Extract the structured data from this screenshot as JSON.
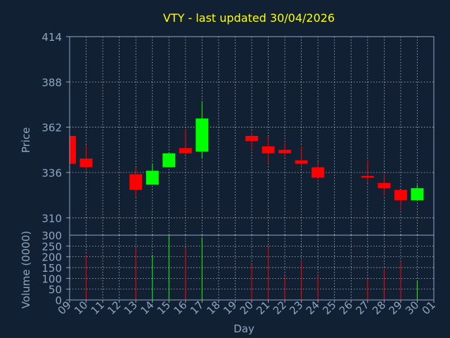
{
  "chart_data": [
    {
      "type": "candlestick",
      "title": "VTY - last updated 30/04/2026",
      "ylabel": "Price",
      "ylim": [
        300,
        414
      ],
      "yticks": [
        300,
        310,
        336,
        362,
        388,
        414
      ],
      "x_ticks": [
        "09",
        "10",
        "11",
        "12",
        "13",
        "14",
        "15",
        "16",
        "17",
        "18",
        "19",
        "20",
        "21",
        "22",
        "23",
        "24",
        "25",
        "26",
        "27",
        "28",
        "29",
        "30",
        "01"
      ],
      "grid": true,
      "up_color": "#00ff00",
      "down_color": "#ff0000",
      "candles": [
        {
          "x": "09",
          "open": 357,
          "high": 357,
          "low": 341,
          "close": 341
        },
        {
          "x": "10",
          "open": 344,
          "high": 352,
          "low": 337,
          "close": 339
        },
        {
          "x": "13",
          "open": 335,
          "high": 339,
          "low": 322,
          "close": 326
        },
        {
          "x": "14",
          "open": 329,
          "high": 341,
          "low": 329,
          "close": 337
        },
        {
          "x": "15",
          "open": 339,
          "high": 347,
          "low": 339,
          "close": 347
        },
        {
          "x": "16",
          "open": 350,
          "high": 361,
          "low": 346,
          "close": 347
        },
        {
          "x": "17",
          "open": 348,
          "high": 377,
          "low": 344,
          "close": 367
        },
        {
          "x": "20",
          "open": 357,
          "high": 359,
          "low": 349,
          "close": 354
        },
        {
          "x": "21",
          "open": 351,
          "high": 357,
          "low": 341,
          "close": 347
        },
        {
          "x": "22",
          "open": 349,
          "high": 353,
          "low": 345,
          "close": 347
        },
        {
          "x": "23",
          "open": 343,
          "high": 351,
          "low": 340,
          "close": 341
        },
        {
          "x": "24",
          "open": 339,
          "high": 342,
          "low": 332,
          "close": 333
        },
        {
          "x": "27",
          "open": 334,
          "high": 343,
          "low": 330,
          "close": 333
        },
        {
          "x": "28",
          "open": 330,
          "high": 335,
          "low": 323,
          "close": 327
        },
        {
          "x": "29",
          "open": 326,
          "high": 326,
          "low": 315,
          "close": 320
        },
        {
          "x": "30",
          "open": 320,
          "high": 329,
          "low": 320,
          "close": 327
        }
      ]
    },
    {
      "type": "bar",
      "ylabel": "Volume (0000)",
      "xlabel": "Day",
      "ylim": [
        0,
        300
      ],
      "yticks": [
        0,
        50,
        100,
        150,
        200,
        250,
        300
      ],
      "x_ticks": [
        "09",
        "10",
        "11",
        "12",
        "13",
        "14",
        "15",
        "16",
        "17",
        "18",
        "19",
        "20",
        "21",
        "22",
        "23",
        "24",
        "25",
        "26",
        "27",
        "28",
        "29",
        "30",
        "01"
      ],
      "grid": true,
      "bars": [
        {
          "x": "10",
          "value": 210,
          "color": "#ff0000"
        },
        {
          "x": "13",
          "value": 240,
          "color": "#ff0000"
        },
        {
          "x": "14",
          "value": 210,
          "color": "#00ff00"
        },
        {
          "x": "15",
          "value": 295,
          "color": "#00ff00"
        },
        {
          "x": "16",
          "value": 240,
          "color": "#ff0000"
        },
        {
          "x": "17",
          "value": 290,
          "color": "#00ff00"
        },
        {
          "x": "20",
          "value": 165,
          "color": "#ff0000"
        },
        {
          "x": "21",
          "value": 245,
          "color": "#ff0000"
        },
        {
          "x": "22",
          "value": 110,
          "color": "#ff0000"
        },
        {
          "x": "23",
          "value": 185,
          "color": "#ff0000"
        },
        {
          "x": "24",
          "value": 115,
          "color": "#ff0000"
        },
        {
          "x": "27",
          "value": 100,
          "color": "#ff0000"
        },
        {
          "x": "28",
          "value": 145,
          "color": "#ff0000"
        },
        {
          "x": "29",
          "value": 180,
          "color": "#ff0000"
        },
        {
          "x": "30",
          "value": 90,
          "color": "#00ff00"
        }
      ]
    }
  ],
  "colors": {
    "background": "#122033",
    "title": "#ffff00",
    "axis_text": "#8fa6c0",
    "grid": "#ffffff"
  }
}
